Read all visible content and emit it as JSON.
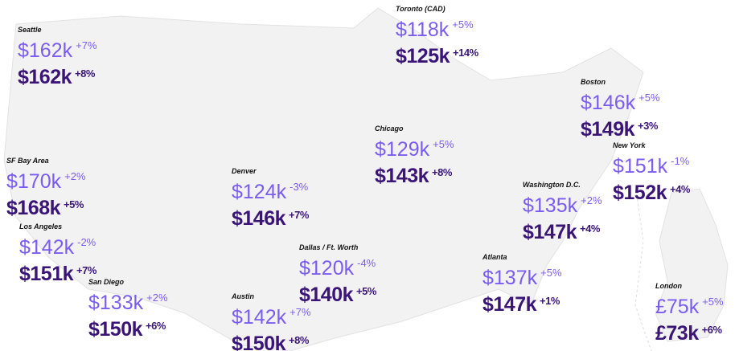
{
  "cities": [
    {
      "name": "Seattle",
      "previous": {
        "salary": "$162k",
        "change": "+7%"
      },
      "current": {
        "salary": "$162k",
        "change": "+8%"
      }
    },
    {
      "name": "Toronto (CAD)",
      "previous": {
        "salary": "$118k",
        "change": "+5%"
      },
      "current": {
        "salary": "$125k",
        "change": "+14%"
      }
    },
    {
      "name": "Boston",
      "previous": {
        "salary": "$146k",
        "change": "+5%"
      },
      "current": {
        "salary": "$149k",
        "change": "+3%"
      }
    },
    {
      "name": "Chicago",
      "previous": {
        "salary": "$129k",
        "change": "+5%"
      },
      "current": {
        "salary": "$143k",
        "change": "+8%"
      }
    },
    {
      "name": "New York",
      "previous": {
        "salary": "$151k",
        "change": "-1%"
      },
      "current": {
        "salary": "$152k",
        "change": "+4%"
      }
    },
    {
      "name": "SF Bay Area",
      "previous": {
        "salary": "$170k",
        "change": "+2%"
      },
      "current": {
        "salary": "$168k",
        "change": "+5%"
      }
    },
    {
      "name": "Denver",
      "previous": {
        "salary": "$124k",
        "change": "-3%"
      },
      "current": {
        "salary": "$146k",
        "change": "+7%"
      }
    },
    {
      "name": "Washington D.C.",
      "previous": {
        "salary": "$135k",
        "change": "+2%"
      },
      "current": {
        "salary": "$147k",
        "change": "+4%"
      }
    },
    {
      "name": "Los Angeles",
      "previous": {
        "salary": "$142k",
        "change": "-2%"
      },
      "current": {
        "salary": "$151k",
        "change": "+7%"
      }
    },
    {
      "name": "Dallas / Ft. Worth",
      "previous": {
        "salary": "$120k",
        "change": "-4%"
      },
      "current": {
        "salary": "$140k",
        "change": "+5%"
      }
    },
    {
      "name": "Atlanta",
      "previous": {
        "salary": "$137k",
        "change": "+5%"
      },
      "current": {
        "salary": "$147k",
        "change": "+1%"
      }
    },
    {
      "name": "San Diego",
      "previous": {
        "salary": "$133k",
        "change": "+2%"
      },
      "current": {
        "salary": "$150k",
        "change": "+6%"
      }
    },
    {
      "name": "Austin",
      "previous": {
        "salary": "$142k",
        "change": "+7%"
      },
      "current": {
        "salary": "$150k",
        "change": "+8%"
      }
    },
    {
      "name": "London",
      "previous": {
        "salary": "£75k",
        "change": "+5%"
      },
      "current": {
        "salary": "£73k",
        "change": "+6%"
      }
    }
  ]
}
